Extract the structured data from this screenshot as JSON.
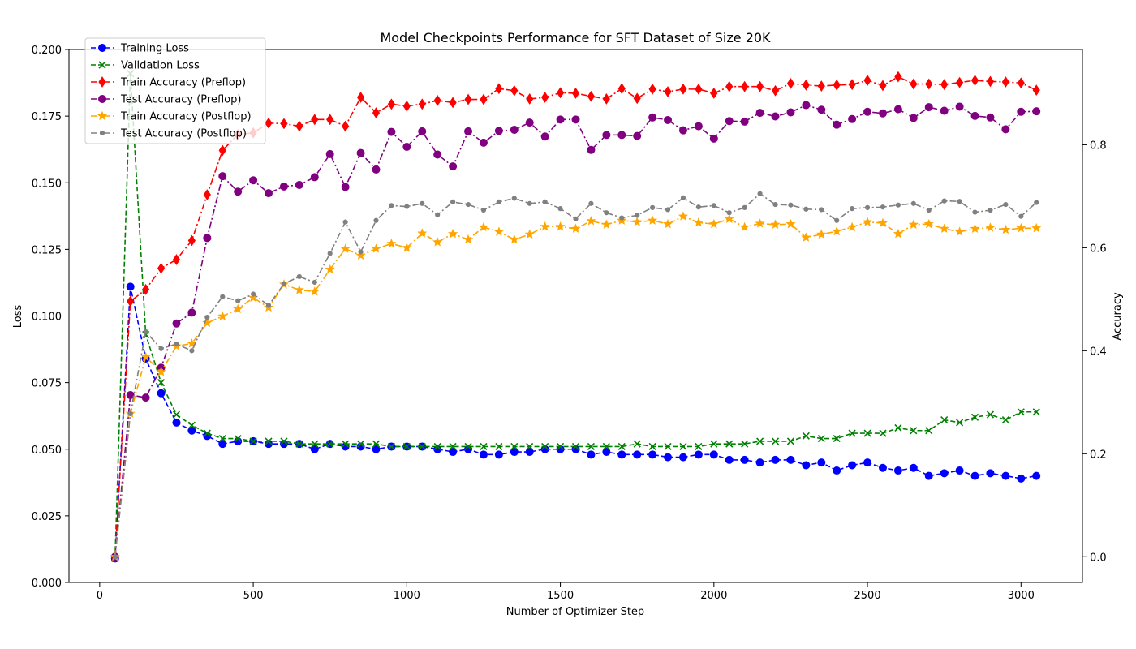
{
  "chart_data": {
    "type": "line",
    "title": "Model Checkpoints Performance for SFT Dataset of Size 20K",
    "xlabel": "Number of Optimizer Step",
    "ylabel_left": "Loss",
    "ylabel_right": "Accuracy",
    "xlim": [
      -100,
      3200
    ],
    "ylim_left": [
      0,
      0.2
    ],
    "ylim_right": [
      -0.05,
      0.985
    ],
    "xticks": [
      0,
      500,
      1000,
      1500,
      2000,
      2500,
      3000
    ],
    "yticks_left": [
      "0.000",
      "0.025",
      "0.050",
      "0.075",
      "0.100",
      "0.125",
      "0.150",
      "0.175",
      "0.200"
    ],
    "yticks_right": [
      "0.0",
      "0.2",
      "0.4",
      "0.6",
      "0.8"
    ],
    "grid": false,
    "legend_position": "upper-left",
    "x": [
      50,
      100,
      150,
      200,
      250,
      300,
      350,
      400,
      450,
      500,
      550,
      600,
      650,
      700,
      750,
      800,
      850,
      900,
      950,
      1000,
      1050,
      1100,
      1150,
      1200,
      1250,
      1300,
      1350,
      1400,
      1450,
      1500,
      1550,
      1600,
      1650,
      1700,
      1750,
      1800,
      1850,
      1900,
      1950,
      2000,
      2050,
      2100,
      2150,
      2200,
      2250,
      2300,
      2350,
      2400,
      2450,
      2500,
      2550,
      2600,
      2650,
      2700,
      2750,
      2800,
      2850,
      2900,
      2950,
      3000,
      3050
    ],
    "series": [
      {
        "name": "Training Loss",
        "axis": "left",
        "color": "#0000ff",
        "linestyle": "dashed",
        "marker": "circle",
        "values": [
          0.009,
          0.111,
          0.084,
          0.071,
          0.06,
          0.057,
          0.055,
          0.052,
          0.053,
          0.053,
          0.052,
          0.052,
          0.052,
          0.05,
          0.052,
          0.051,
          0.051,
          0.05,
          0.051,
          0.051,
          0.051,
          0.05,
          0.049,
          0.05,
          0.048,
          0.048,
          0.049,
          0.049,
          0.05,
          0.05,
          0.05,
          0.048,
          0.049,
          0.048,
          0.048,
          0.048,
          0.047,
          0.047,
          0.048,
          0.048,
          0.046,
          0.046,
          0.045,
          0.046,
          0.046,
          0.044,
          0.045,
          0.042,
          0.044,
          0.045,
          0.043,
          0.042,
          0.043,
          0.04,
          0.041,
          0.042,
          0.04,
          0.041,
          0.04,
          0.039,
          0.04
        ]
      },
      {
        "name": "Validation Loss",
        "axis": "left",
        "color": "#008000",
        "linestyle": "dashed",
        "marker": "x",
        "values": [
          0.009,
          0.191,
          0.093,
          0.075,
          0.063,
          0.059,
          0.056,
          0.054,
          0.054,
          0.053,
          0.053,
          0.053,
          0.052,
          0.052,
          0.052,
          0.052,
          0.052,
          0.052,
          0.051,
          0.051,
          0.051,
          0.051,
          0.051,
          0.051,
          0.051,
          0.051,
          0.051,
          0.051,
          0.051,
          0.051,
          0.051,
          0.051,
          0.051,
          0.051,
          0.052,
          0.051,
          0.051,
          0.051,
          0.051,
          0.052,
          0.052,
          0.052,
          0.053,
          0.053,
          0.053,
          0.055,
          0.054,
          0.054,
          0.056,
          0.056,
          0.056,
          0.058,
          0.057,
          0.057,
          0.061,
          0.06,
          0.062,
          0.063,
          0.061,
          0.064,
          0.064
        ]
      },
      {
        "name": "Train Accuracy (Preflop)",
        "axis": "right",
        "color": "#ff0000",
        "linestyle": "dashdot",
        "marker": "diamond",
        "values": [
          0.0,
          0.496,
          0.519,
          0.56,
          0.577,
          0.614,
          0.703,
          0.789,
          0.82,
          0.823,
          0.842,
          0.841,
          0.836,
          0.849,
          0.849,
          0.836,
          0.892,
          0.862,
          0.879,
          0.875,
          0.879,
          0.886,
          0.882,
          0.888,
          0.888,
          0.909,
          0.905,
          0.889,
          0.892,
          0.901,
          0.9,
          0.894,
          0.889,
          0.909,
          0.89,
          0.908,
          0.903,
          0.908,
          0.908,
          0.9,
          0.913,
          0.913,
          0.913,
          0.905,
          0.919,
          0.916,
          0.914,
          0.916,
          0.917,
          0.925,
          0.915,
          0.932,
          0.918,
          0.918,
          0.917,
          0.921,
          0.925,
          0.923,
          0.922,
          0.92,
          0.906
        ]
      },
      {
        "name": "Test Accuracy (Preflop)",
        "axis": "right",
        "color": "#800080",
        "linestyle": "dashdot",
        "marker": "circle",
        "values": [
          0.0,
          0.314,
          0.309,
          0.367,
          0.453,
          0.474,
          0.619,
          0.739,
          0.709,
          0.731,
          0.706,
          0.719,
          0.722,
          0.737,
          0.782,
          0.718,
          0.784,
          0.752,
          0.825,
          0.796,
          0.826,
          0.781,
          0.758,
          0.826,
          0.804,
          0.827,
          0.829,
          0.843,
          0.816,
          0.849,
          0.849,
          0.79,
          0.819,
          0.819,
          0.817,
          0.853,
          0.848,
          0.828,
          0.836,
          0.812,
          0.846,
          0.845,
          0.862,
          0.855,
          0.863,
          0.877,
          0.868,
          0.839,
          0.85,
          0.864,
          0.861,
          0.869,
          0.852,
          0.873,
          0.866,
          0.874,
          0.856,
          0.853,
          0.83,
          0.864,
          0.865
        ]
      },
      {
        "name": "Train Accuracy (Postflop)",
        "axis": "right",
        "color": "#ffa500",
        "linestyle": "dashdot",
        "marker": "star",
        "values": [
          0.0,
          0.278,
          0.388,
          0.359,
          0.409,
          0.414,
          0.454,
          0.467,
          0.481,
          0.503,
          0.484,
          0.529,
          0.518,
          0.515,
          0.558,
          0.598,
          0.585,
          0.598,
          0.608,
          0.6,
          0.628,
          0.611,
          0.627,
          0.616,
          0.64,
          0.631,
          0.616,
          0.626,
          0.641,
          0.641,
          0.637,
          0.652,
          0.645,
          0.653,
          0.65,
          0.653,
          0.646,
          0.661,
          0.649,
          0.646,
          0.656,
          0.64,
          0.647,
          0.645,
          0.646,
          0.62,
          0.626,
          0.632,
          0.64,
          0.65,
          0.648,
          0.627,
          0.645,
          0.646,
          0.637,
          0.631,
          0.637,
          0.639,
          0.635,
          0.638,
          0.638
        ]
      },
      {
        "name": "Test Accuracy (Postflop)",
        "axis": "right",
        "color": "#808080",
        "linestyle": "dashdot",
        "marker": "point",
        "values": [
          0.0,
          0.278,
          0.437,
          0.404,
          0.413,
          0.4,
          0.465,
          0.505,
          0.497,
          0.51,
          0.488,
          0.53,
          0.544,
          0.533,
          0.589,
          0.65,
          0.592,
          0.653,
          0.682,
          0.68,
          0.686,
          0.664,
          0.689,
          0.684,
          0.673,
          0.689,
          0.696,
          0.686,
          0.689,
          0.676,
          0.656,
          0.686,
          0.668,
          0.658,
          0.663,
          0.678,
          0.674,
          0.697,
          0.679,
          0.682,
          0.668,
          0.678,
          0.705,
          0.684,
          0.683,
          0.675,
          0.674,
          0.653,
          0.676,
          0.678,
          0.679,
          0.683,
          0.686,
          0.673,
          0.691,
          0.69,
          0.669,
          0.673,
          0.684,
          0.661,
          0.688
        ]
      }
    ]
  }
}
